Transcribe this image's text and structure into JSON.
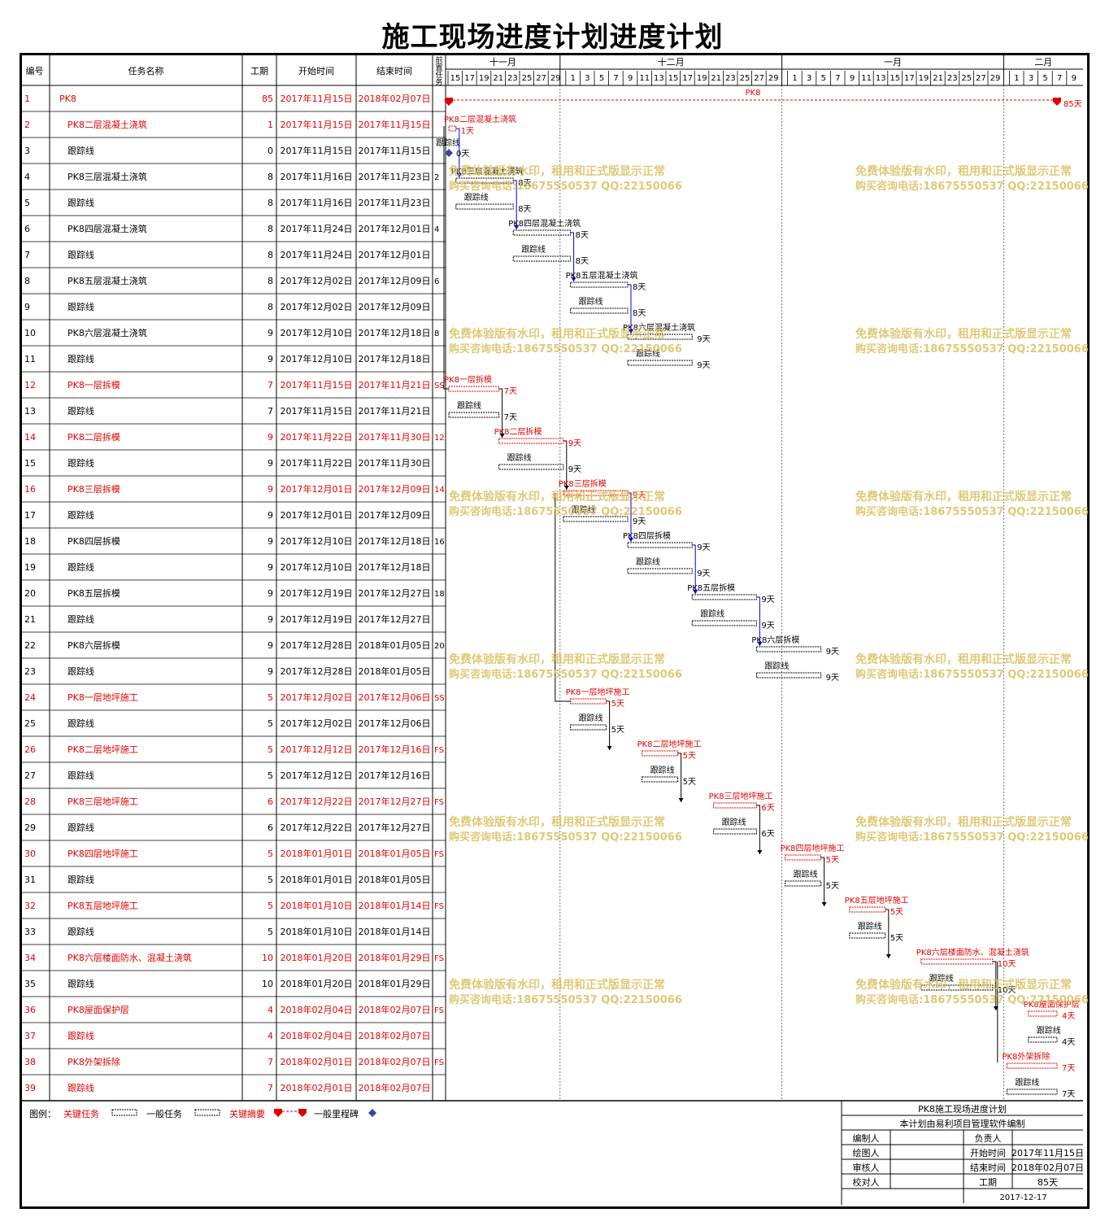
{
  "title": "施工现场进度计划进度计划",
  "headers": {
    "id": "编号",
    "name": "任务名称",
    "dur": "工期",
    "start": "开始时间",
    "end": "结束时间",
    "pred": "前置任务"
  },
  "months": [
    {
      "label": "十一月",
      "days": [
        "15",
        "17",
        "19",
        "21",
        "23",
        "25",
        "27",
        "29"
      ]
    },
    {
      "label": "十二月",
      "days": [
        "1",
        "3",
        "5",
        "7",
        "9",
        "11",
        "13",
        "15",
        "17",
        "19",
        "21",
        "23",
        "25",
        "27",
        "29"
      ]
    },
    {
      "label": "一月",
      "days": [
        "1",
        "3",
        "5",
        "7",
        "9",
        "11",
        "13",
        "15",
        "17",
        "19",
        "21",
        "23",
        "25",
        "27",
        "29"
      ]
    },
    {
      "label": "二月",
      "days": [
        "1",
        "3",
        "5",
        "7",
        "9"
      ]
    }
  ],
  "day_unit": "天",
  "follow_label": "跟踪线",
  "tasks": [
    {
      "id": "1",
      "name": "PK8",
      "dur": "85",
      "start": "2017年11月15日",
      "end": "2018年02月07日",
      "pred": "",
      "crit": true,
      "indent": 0,
      "s": 0,
      "d": 85,
      "type": "summary"
    },
    {
      "id": "2",
      "name": "PK8二层混凝土浇筑",
      "dur": "1",
      "start": "2017年11月15日",
      "end": "2017年11月15日",
      "pred": "",
      "crit": true,
      "indent": 1,
      "s": 0,
      "d": 1,
      "type": "task"
    },
    {
      "id": "3",
      "name": "跟踪线",
      "dur": "0",
      "start": "2017年11月15日",
      "end": "2017年11月15日",
      "pred": "",
      "crit": false,
      "indent": 1,
      "s": 0,
      "d": 0,
      "type": "milestone"
    },
    {
      "id": "4",
      "name": "PK8三层混凝土浇筑",
      "dur": "8",
      "start": "2017年11月16日",
      "end": "2017年11月23日",
      "pred": "2",
      "crit": false,
      "indent": 1,
      "s": 1,
      "d": 8,
      "type": "task"
    },
    {
      "id": "5",
      "name": "跟踪线",
      "dur": "8",
      "start": "2017年11月16日",
      "end": "2017年11月23日",
      "pred": "",
      "crit": false,
      "indent": 1,
      "s": 1,
      "d": 8,
      "type": "follow"
    },
    {
      "id": "6",
      "name": "PK8四层混凝土浇筑",
      "dur": "8",
      "start": "2017年11月24日",
      "end": "2017年12月01日",
      "pred": "4",
      "crit": false,
      "indent": 1,
      "s": 9,
      "d": 8,
      "type": "task"
    },
    {
      "id": "7",
      "name": "跟踪线",
      "dur": "8",
      "start": "2017年11月24日",
      "end": "2017年12月01日",
      "pred": "",
      "crit": false,
      "indent": 1,
      "s": 9,
      "d": 8,
      "type": "follow"
    },
    {
      "id": "8",
      "name": "PK8五层混凝土浇筑",
      "dur": "8",
      "start": "2017年12月02日",
      "end": "2017年12月09日",
      "pred": "6",
      "crit": false,
      "indent": 1,
      "s": 17,
      "d": 8,
      "type": "task"
    },
    {
      "id": "9",
      "name": "跟踪线",
      "dur": "8",
      "start": "2017年12月02日",
      "end": "2017年12月09日",
      "pred": "",
      "crit": false,
      "indent": 1,
      "s": 17,
      "d": 8,
      "type": "follow"
    },
    {
      "id": "10",
      "name": "PK8六层混凝土浇筑",
      "dur": "9",
      "start": "2017年12月10日",
      "end": "2017年12月18日",
      "pred": "8",
      "crit": false,
      "indent": 1,
      "s": 25,
      "d": 9,
      "type": "task"
    },
    {
      "id": "11",
      "name": "跟踪线",
      "dur": "9",
      "start": "2017年12月10日",
      "end": "2017年12月18日",
      "pred": "",
      "crit": false,
      "indent": 1,
      "s": 25,
      "d": 9,
      "type": "follow"
    },
    {
      "id": "12",
      "name": "PK8一层拆模",
      "dur": "7",
      "start": "2017年11月15日",
      "end": "2017年11月21日",
      "pred": "SS",
      "crit": true,
      "indent": 1,
      "s": 0,
      "d": 7,
      "type": "task"
    },
    {
      "id": "13",
      "name": "跟踪线",
      "dur": "7",
      "start": "2017年11月15日",
      "end": "2017年11月21日",
      "pred": "",
      "crit": false,
      "indent": 1,
      "s": 0,
      "d": 7,
      "type": "follow"
    },
    {
      "id": "14",
      "name": "PK8二层拆模",
      "dur": "9",
      "start": "2017年11月22日",
      "end": "2017年11月30日",
      "pred": "12",
      "crit": true,
      "indent": 1,
      "s": 7,
      "d": 9,
      "type": "task"
    },
    {
      "id": "15",
      "name": "跟踪线",
      "dur": "9",
      "start": "2017年11月22日",
      "end": "2017年11月30日",
      "pred": "",
      "crit": false,
      "indent": 1,
      "s": 7,
      "d": 9,
      "type": "follow"
    },
    {
      "id": "16",
      "name": "PK8三层拆模",
      "dur": "9",
      "start": "2017年12月01日",
      "end": "2017年12月09日",
      "pred": "14",
      "crit": true,
      "indent": 1,
      "s": 16,
      "d": 9,
      "type": "task"
    },
    {
      "id": "17",
      "name": "跟踪线",
      "dur": "9",
      "start": "2017年12月01日",
      "end": "2017年12月09日",
      "pred": "",
      "crit": false,
      "indent": 1,
      "s": 16,
      "d": 9,
      "type": "follow"
    },
    {
      "id": "18",
      "name": "PK8四层拆模",
      "dur": "9",
      "start": "2017年12月10日",
      "end": "2017年12月18日",
      "pred": "16",
      "crit": false,
      "indent": 1,
      "s": 25,
      "d": 9,
      "type": "task"
    },
    {
      "id": "19",
      "name": "跟踪线",
      "dur": "9",
      "start": "2017年12月10日",
      "end": "2017年12月18日",
      "pred": "",
      "crit": false,
      "indent": 1,
      "s": 25,
      "d": 9,
      "type": "follow"
    },
    {
      "id": "20",
      "name": "PK8五层拆模",
      "dur": "9",
      "start": "2017年12月19日",
      "end": "2017年12月27日",
      "pred": "18",
      "crit": false,
      "indent": 1,
      "s": 34,
      "d": 9,
      "type": "task"
    },
    {
      "id": "21",
      "name": "跟踪线",
      "dur": "9",
      "start": "2017年12月19日",
      "end": "2017年12月27日",
      "pred": "",
      "crit": false,
      "indent": 1,
      "s": 34,
      "d": 9,
      "type": "follow"
    },
    {
      "id": "22",
      "name": "PK8六层拆模",
      "dur": "9",
      "start": "2017年12月28日",
      "end": "2018年01月05日",
      "pred": "20",
      "crit": false,
      "indent": 1,
      "s": 43,
      "d": 9,
      "type": "task"
    },
    {
      "id": "23",
      "name": "跟踪线",
      "dur": "9",
      "start": "2017年12月28日",
      "end": "2018年01月05日",
      "pred": "",
      "crit": false,
      "indent": 1,
      "s": 43,
      "d": 9,
      "type": "follow"
    },
    {
      "id": "24",
      "name": "PK8一层地坪施工",
      "dur": "5",
      "start": "2017年12月02日",
      "end": "2017年12月06日",
      "pred": "SS",
      "crit": true,
      "indent": 1,
      "s": 17,
      "d": 5,
      "type": "task"
    },
    {
      "id": "25",
      "name": "跟踪线",
      "dur": "5",
      "start": "2017年12月02日",
      "end": "2017年12月06日",
      "pred": "",
      "crit": false,
      "indent": 1,
      "s": 17,
      "d": 5,
      "type": "follow"
    },
    {
      "id": "26",
      "name": "PK8二层地坪施工",
      "dur": "5",
      "start": "2017年12月12日",
      "end": "2017年12月16日",
      "pred": "FS",
      "crit": true,
      "indent": 1,
      "s": 27,
      "d": 5,
      "type": "task"
    },
    {
      "id": "27",
      "name": "跟踪线",
      "dur": "5",
      "start": "2017年12月12日",
      "end": "2017年12月16日",
      "pred": "",
      "crit": false,
      "indent": 1,
      "s": 27,
      "d": 5,
      "type": "follow"
    },
    {
      "id": "28",
      "name": "PK8三层地坪施工",
      "dur": "6",
      "start": "2017年12月22日",
      "end": "2017年12月27日",
      "pred": "FS",
      "crit": true,
      "indent": 1,
      "s": 37,
      "d": 6,
      "type": "task"
    },
    {
      "id": "29",
      "name": "跟踪线",
      "dur": "6",
      "start": "2017年12月22日",
      "end": "2017年12月27日",
      "pred": "",
      "crit": false,
      "indent": 1,
      "s": 37,
      "d": 6,
      "type": "follow"
    },
    {
      "id": "30",
      "name": "PK8四层地坪施工",
      "dur": "5",
      "start": "2018年01月01日",
      "end": "2018年01月05日",
      "pred": "FS",
      "crit": true,
      "indent": 1,
      "s": 47,
      "d": 5,
      "type": "task"
    },
    {
      "id": "31",
      "name": "跟踪线",
      "dur": "5",
      "start": "2018年01月01日",
      "end": "2018年01月05日",
      "pred": "",
      "crit": false,
      "indent": 1,
      "s": 47,
      "d": 5,
      "type": "follow"
    },
    {
      "id": "32",
      "name": "PK8五层地坪施工",
      "dur": "5",
      "start": "2018年01月10日",
      "end": "2018年01月14日",
      "pred": "FS",
      "crit": true,
      "indent": 1,
      "s": 56,
      "d": 5,
      "type": "task"
    },
    {
      "id": "33",
      "name": "跟踪线",
      "dur": "5",
      "start": "2018年01月10日",
      "end": "2018年01月14日",
      "pred": "",
      "crit": false,
      "indent": 1,
      "s": 56,
      "d": 5,
      "type": "follow"
    },
    {
      "id": "34",
      "name": "PK8六层楼面防水、混凝土浇筑",
      "dur": "10",
      "start": "2018年01月20日",
      "end": "2018年01月29日",
      "pred": "FS",
      "crit": true,
      "indent": 1,
      "s": 66,
      "d": 10,
      "type": "task"
    },
    {
      "id": "35",
      "name": "跟踪线",
      "dur": "10",
      "start": "2018年01月20日",
      "end": "2018年01月29日",
      "pred": "",
      "crit": false,
      "indent": 1,
      "s": 66,
      "d": 10,
      "type": "follow"
    },
    {
      "id": "36",
      "name": "PK8屋面保护层",
      "dur": "4",
      "start": "2018年02月04日",
      "end": "2018年02月07日",
      "pred": "FS",
      "crit": true,
      "indent": 1,
      "s": 81,
      "d": 4,
      "type": "task"
    },
    {
      "id": "37",
      "name": "跟踪线",
      "dur": "4",
      "start": "2018年02月04日",
      "end": "2018年02月07日",
      "pred": "",
      "crit": true,
      "indent": 1,
      "s": 81,
      "d": 4,
      "type": "follow"
    },
    {
      "id": "38",
      "name": "PK8外架拆除",
      "dur": "7",
      "start": "2018年02月01日",
      "end": "2018年02月07日",
      "pred": "FS",
      "crit": true,
      "indent": 1,
      "s": 78,
      "d": 7,
      "type": "task"
    },
    {
      "id": "39",
      "name": "跟踪线",
      "dur": "7",
      "start": "2018年02月01日",
      "end": "2018年02月07日",
      "pred": "",
      "crit": true,
      "indent": 1,
      "s": 78,
      "d": 7,
      "type": "follow"
    }
  ],
  "legend": {
    "label": "图例：",
    "critical": "关键任务",
    "normal": "一般任务",
    "summary": "关键摘要",
    "milestone": "一般里程碑"
  },
  "info_box": {
    "title": "PK8施工现场进度计划",
    "subtitle": "本计划由易利项目管理软件编制",
    "rows": [
      [
        "编制人",
        "",
        "负责人",
        ""
      ],
      [
        "绘图人",
        "",
        "开始时间",
        "2017年11月15日"
      ],
      [
        "审核人",
        "",
        "结束时间",
        "2018年02月07日"
      ],
      [
        "校对人",
        "",
        "工期",
        "85天"
      ]
    ],
    "date": "2017-12-17"
  },
  "watermark": {
    "line1": "免费体验版有水印，租用和正式版显示正常",
    "line2": "购买咨询电话:18675550537 QQ:22150066"
  },
  "colors": {
    "critical": "#e00000",
    "link": "#0000cc",
    "watermark": "#d8c060",
    "milestone": "#3344aa"
  }
}
